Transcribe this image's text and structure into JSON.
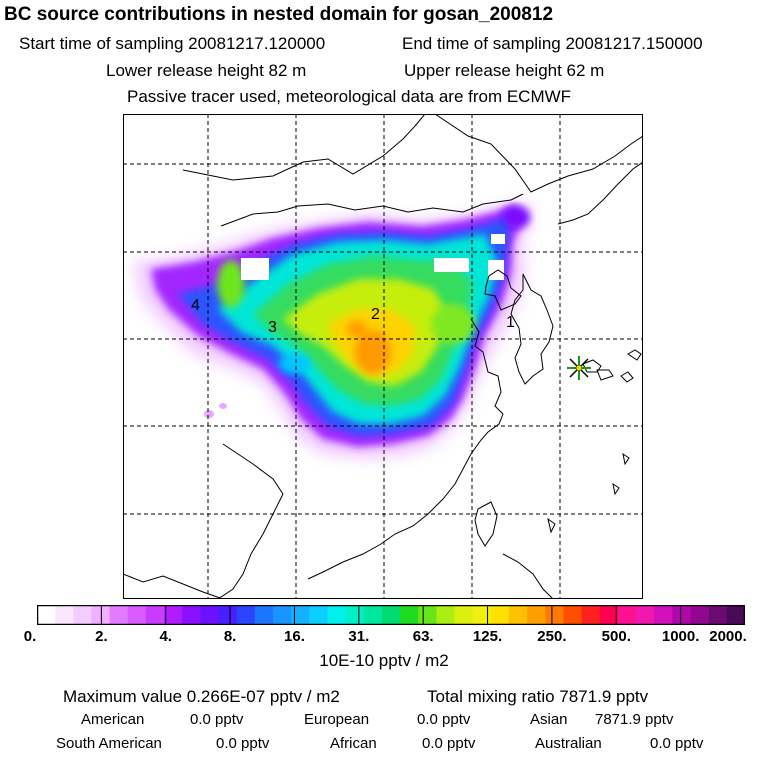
{
  "header": {
    "title": "BC  source contributions in nested domain for gosan_200812",
    "start_time": "Start time of sampling 20081217.120000",
    "end_time": "End time of sampling 20081217.150000",
    "lower_release": "Lower release height   82 m",
    "upper_release": "Upper release height   62 m",
    "note": "Passive tracer used, meteorological data are from ECMWF"
  },
  "map": {
    "source_labels": [
      "1",
      "2",
      "3",
      "4"
    ],
    "receptor_marker": "asterisk-icon"
  },
  "colorbar": {
    "tick_labels": [
      "0.",
      "2.",
      "4.",
      "8.",
      "16.",
      "31.",
      "63.",
      "125.",
      "250.",
      "500.",
      "1000.",
      "2000."
    ],
    "colors": [
      "#ffffff",
      "#fbe6ff",
      "#f5ccff",
      "#efb0ff",
      "#e27bff",
      "#d85cff",
      "#c93cff",
      "#b11cff",
      "#8c10ff",
      "#6c10ff",
      "#4a1fff",
      "#2b45ff",
      "#1c75ff",
      "#1a95ff",
      "#16b0ff",
      "#0ccfff",
      "#00f0f0",
      "#00f0c8",
      "#00e8a0",
      "#00dc70",
      "#20dc20",
      "#66e61a",
      "#a8ee10",
      "#dcf010",
      "#f0f010",
      "#ffe000",
      "#ffc000",
      "#ffa000",
      "#ff7a00",
      "#ff4e00",
      "#ff2020",
      "#ff0050",
      "#ff1090",
      "#f018b0",
      "#d010b8",
      "#b008a8",
      "#900890",
      "#6c0a74",
      "#4a0a58"
    ],
    "unit": "10E-10 pptv / m2"
  },
  "stats": {
    "max_value": "Maximum value  0.266E-07 pptv / m2",
    "total_mixing": "Total mixing ratio     7871.9 pptv",
    "american_label": "American",
    "american_value": "0.0 pptv",
    "european_label": "European",
    "european_value": "0.0 pptv",
    "asian_label": "Asian",
    "asian_value": "7871.9 pptv",
    "south_american_label": "South American",
    "south_american_value": "0.0 pptv",
    "african_label": "African",
    "african_value": "0.0 pptv",
    "australian_label": "Australian",
    "australian_value": "0.0 pptv"
  }
}
